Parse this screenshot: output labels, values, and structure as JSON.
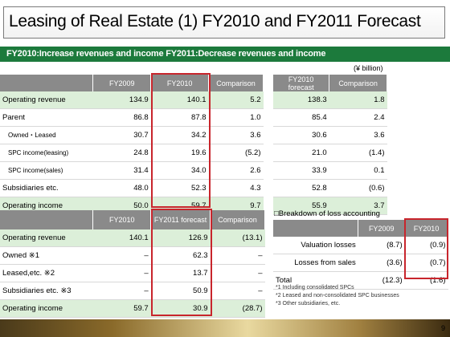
{
  "title": "Leasing of Real Estate (1) FY2010 and FY2011 Forecast",
  "subtitle": "FY2010:Increase revenues and income  FY2011:Decrease revenues and income",
  "unit": "(¥ billion)",
  "table1": {
    "headers": [
      "",
      "FY2009",
      "FY2010",
      "Comparison"
    ],
    "rows": [
      [
        "Operating revenue",
        "134.9",
        "140.1",
        "5.2"
      ],
      [
        "Parent",
        "86.8",
        "87.8",
        "1.0"
      ],
      [
        "Owned・Leased",
        "30.7",
        "34.2",
        "3.6"
      ],
      [
        "SPC income(leasing)",
        "24.8",
        "19.6",
        "(5.2)"
      ],
      [
        "SPC income(sales)",
        "31.4",
        "34.0",
        "2.6"
      ],
      [
        "Subsidiaries etc.",
        "48.0",
        "52.3",
        "4.3"
      ],
      [
        "Operating income",
        "50.0",
        "59.7",
        "9.7"
      ]
    ]
  },
  "table2": {
    "headers": [
      "FY2010 forecast",
      "Comparison"
    ],
    "rows": [
      [
        "138.3",
        "1.8"
      ],
      [
        "85.4",
        "2.4"
      ],
      [
        "30.6",
        "3.6"
      ],
      [
        "21.0",
        "(1.4)"
      ],
      [
        "33.9",
        "0.1"
      ],
      [
        "52.8",
        "(0.6)"
      ],
      [
        "55.9",
        "3.7"
      ]
    ]
  },
  "table3": {
    "headers": [
      "",
      "FY2010",
      "FY2011 forecast",
      "Comparison"
    ],
    "rows": [
      [
        "Operating revenue",
        "140.1",
        "126.9",
        "(13.1)"
      ],
      [
        "Owned  ※1",
        "–",
        "62.3",
        "–"
      ],
      [
        "Leased,etc.  ※2",
        "–",
        "13.7",
        "–"
      ],
      [
        "Subsidiaries etc.  ※3",
        "–",
        "50.9",
        "–"
      ],
      [
        "Operating income",
        "59.7",
        "30.9",
        "(28.7)"
      ]
    ]
  },
  "loss": {
    "title": "□Breakdown of loss accounting",
    "headers": [
      "",
      "FY2009",
      "FY2010"
    ],
    "rows": [
      [
        "Valuation losses",
        "(8.7)",
        "(0.9)"
      ],
      [
        "Losses from sales",
        "(3.6)",
        "(0.7)"
      ],
      [
        "Total",
        "(12.3)",
        "(1.6)"
      ]
    ]
  },
  "notes": [
    "*1 Including consolidated SPCs",
    "*2 Leased and non-consolidated SPC businesses",
    "*3 Other subsidiaries, etc."
  ],
  "page_number": "9",
  "colors": {
    "accent_green": "#1c7a3c",
    "highlight_red": "#c8252c",
    "header_gray": "#8a8a8a",
    "row_shade": "#dcefd9"
  }
}
